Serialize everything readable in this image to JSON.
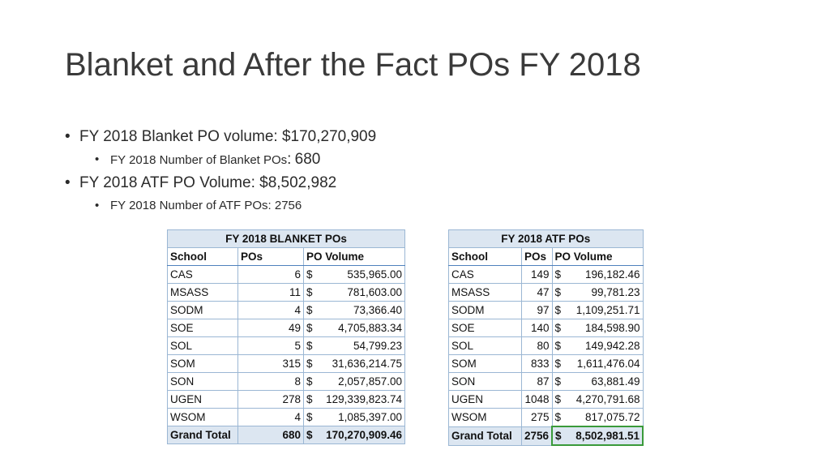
{
  "slide": {
    "title": "Blanket and After the Fact POs FY 2018"
  },
  "bullets": {
    "blanket_volume": "FY 2018 Blanket PO volume: $170,270,909",
    "blanket_count_label": "FY 2018 Number of Blanket POs",
    "blanket_count_colon": ":",
    "blanket_count_value": "680",
    "atf_volume": "FY 2018 ATF PO Volume: $8,502,982",
    "atf_count": "FY 2018 Number of ATF POs: 2756"
  },
  "blanket_table": {
    "caption": "FY 2018 BLANKET POs",
    "headers": [
      "School",
      "POs",
      "PO Volume"
    ],
    "rows": [
      {
        "school": "CAS",
        "pos": "6",
        "sym": "$",
        "volume": "535,965.00"
      },
      {
        "school": "MSASS",
        "pos": "11",
        "sym": "$",
        "volume": "781,603.00"
      },
      {
        "school": "SODM",
        "pos": "4",
        "sym": "$",
        "volume": "73,366.40"
      },
      {
        "school": "SOE",
        "pos": "49",
        "sym": "$",
        "volume": "4,705,883.34"
      },
      {
        "school": "SOL",
        "pos": "5",
        "sym": "$",
        "volume": "54,799.23"
      },
      {
        "school": "SOM",
        "pos": "315",
        "sym": "$",
        "volume": "31,636,214.75"
      },
      {
        "school": "SON",
        "pos": "8",
        "sym": "$",
        "volume": "2,057,857.00"
      },
      {
        "school": "UGEN",
        "pos": "278",
        "sym": "$",
        "volume": "129,339,823.74"
      },
      {
        "school": "WSOM",
        "pos": "4",
        "sym": "$",
        "volume": "1,085,397.00"
      }
    ],
    "total": {
      "school": "Grand Total",
      "pos": "680",
      "sym": "$",
      "volume": "170,270,909.46"
    }
  },
  "atf_table": {
    "caption": "FY 2018 ATF POs",
    "headers": [
      "School",
      "POs",
      "PO Volume"
    ],
    "rows": [
      {
        "school": "CAS",
        "pos": "149",
        "sym": "$",
        "volume": "196,182.46"
      },
      {
        "school": "MSASS",
        "pos": "47",
        "sym": "$",
        "volume": "99,781.23"
      },
      {
        "school": "SODM",
        "pos": "97",
        "sym": "$",
        "volume": "1,109,251.71"
      },
      {
        "school": "SOE",
        "pos": "140",
        "sym": "$",
        "volume": "184,598.90"
      },
      {
        "school": "SOL",
        "pos": "80",
        "sym": "$",
        "volume": "149,942.28"
      },
      {
        "school": "SOM",
        "pos": "833",
        "sym": "$",
        "volume": "1,611,476.04"
      },
      {
        "school": "SON",
        "pos": "87",
        "sym": "$",
        "volume": "63,881.49"
      },
      {
        "school": "UGEN",
        "pos": "1048",
        "sym": "$",
        "volume": "4,270,791.68"
      },
      {
        "school": "WSOM",
        "pos": "275",
        "sym": "$",
        "volume": "817,075.72"
      }
    ],
    "total": {
      "school": "Grand Total",
      "pos": "2756",
      "sym": "$",
      "volume": "8,502,981.51"
    }
  },
  "colors": {
    "header_fill": "#dce6f1",
    "grid_border": "#9bb7d4",
    "selection_border": "#3a9a3a"
  }
}
